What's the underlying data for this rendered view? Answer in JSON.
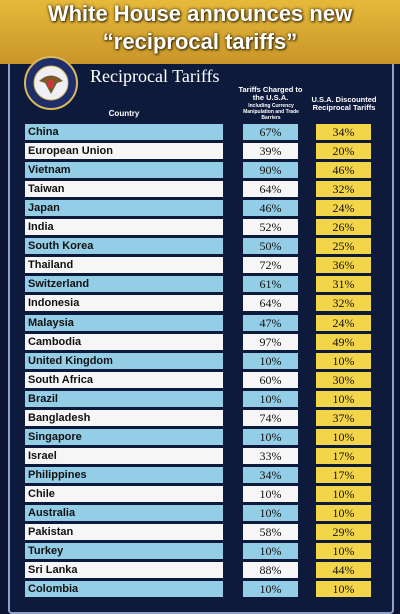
{
  "header": {
    "title_line1": "White House announces new",
    "title_line2": "“reciprocal tariffs”"
  },
  "panel": {
    "title": "Reciprocal Tariffs"
  },
  "table": {
    "columns": [
      "Country",
      "Tariffs Charged to the U.S.A.",
      "U.S.A. Discounted Reciprocal Tariffs"
    ],
    "column_note": "Including Currency Manipulation and Trade Barriers",
    "rows": [
      [
        "China",
        "67%",
        "34%"
      ],
      [
        "European Union",
        "39%",
        "20%"
      ],
      [
        "Vietnam",
        "90%",
        "46%"
      ],
      [
        "Taiwan",
        "64%",
        "32%"
      ],
      [
        "Japan",
        "46%",
        "24%"
      ],
      [
        "India",
        "52%",
        "26%"
      ],
      [
        "South Korea",
        "50%",
        "25%"
      ],
      [
        "Thailand",
        "72%",
        "36%"
      ],
      [
        "Switzerland",
        "61%",
        "31%"
      ],
      [
        "Indonesia",
        "64%",
        "32%"
      ],
      [
        "Malaysia",
        "47%",
        "24%"
      ],
      [
        "Cambodia",
        "97%",
        "49%"
      ],
      [
        "United Kingdom",
        "10%",
        "10%"
      ],
      [
        "South Africa",
        "60%",
        "30%"
      ],
      [
        "Brazil",
        "10%",
        "10%"
      ],
      [
        "Bangladesh",
        "74%",
        "37%"
      ],
      [
        "Singapore",
        "10%",
        "10%"
      ],
      [
        "Israel",
        "33%",
        "17%"
      ],
      [
        "Philippines",
        "34%",
        "17%"
      ],
      [
        "Chile",
        "10%",
        "10%"
      ],
      [
        "Australia",
        "10%",
        "10%"
      ],
      [
        "Pakistan",
        "58%",
        "29%"
      ],
      [
        "Turkey",
        "10%",
        "10%"
      ],
      [
        "Sri Lanka",
        "88%",
        "44%"
      ],
      [
        "Colombia",
        "10%",
        "10%"
      ]
    ]
  }
}
